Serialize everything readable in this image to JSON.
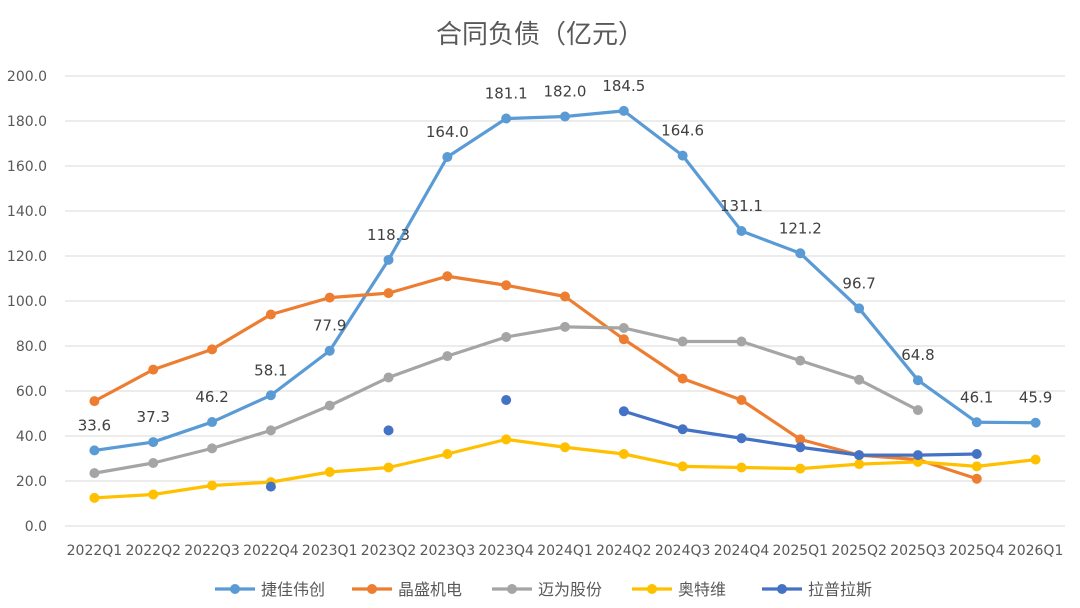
{
  "chart_data": {
    "type": "line",
    "title": "合同负债（亿元）",
    "xlabel": "",
    "ylabel": "",
    "ylim": [
      0,
      200
    ],
    "y_ticks": [
      "0.0",
      "20.0",
      "40.0",
      "60.0",
      "80.0",
      "100.0",
      "120.0",
      "140.0",
      "160.0",
      "180.0",
      "200.0"
    ],
    "grid": "horizontal",
    "legend_position": "bottom",
    "categories": [
      "2022Q1",
      "2022Q2",
      "2022Q3",
      "2022Q4",
      "2023Q1",
      "2023Q2",
      "2023Q3",
      "2023Q4",
      "2024Q1",
      "2024Q2",
      "2024Q3",
      "2024Q4",
      "2025Q1",
      "2025Q2",
      "2025Q3",
      "2025Q4",
      "2026Q1"
    ],
    "series": [
      {
        "name": "捷佳伟创",
        "color": "#5B9BD5",
        "values": [
          33.6,
          37.3,
          46.2,
          58.1,
          77.9,
          118.3,
          164.0,
          181.1,
          182.0,
          184.5,
          164.6,
          131.1,
          121.2,
          96.7,
          64.8,
          46.1,
          45.9
        ],
        "labels": [
          "33.6",
          "37.3",
          "46.2",
          "58.1",
          "77.9",
          "118.3",
          "164.0",
          "181.1",
          "182.0",
          "184.5",
          "164.6",
          "131.1",
          "121.2",
          "96.7",
          "64.8",
          "46.1",
          "45.9"
        ]
      },
      {
        "name": "晶盛机电",
        "color": "#ED7D31",
        "values": [
          55.5,
          69.5,
          78.5,
          94.0,
          101.5,
          103.5,
          111.0,
          107.0,
          102.0,
          83.0,
          65.5,
          56.0,
          38.5,
          31.5,
          29.5,
          21.0,
          null
        ]
      },
      {
        "name": "迈为股份",
        "color": "#A5A5A5",
        "values": [
          23.5,
          28.0,
          34.5,
          42.5,
          53.5,
          66.0,
          75.5,
          84.0,
          88.5,
          88.0,
          82.0,
          82.0,
          73.5,
          65.0,
          51.5,
          null,
          null
        ]
      },
      {
        "name": "奥特维",
        "color": "#FFC000",
        "values": [
          12.5,
          14.0,
          18.0,
          19.5,
          24.0,
          26.0,
          32.0,
          38.5,
          35.0,
          32.0,
          26.5,
          26.0,
          25.5,
          27.5,
          28.5,
          26.5,
          29.5
        ]
      },
      {
        "name": "拉普拉斯",
        "color": "#4472C4",
        "values": [
          null,
          null,
          null,
          17.5,
          null,
          42.5,
          null,
          56.0,
          null,
          51.0,
          43.0,
          39.0,
          35.0,
          31.5,
          31.5,
          32.0,
          null
        ]
      }
    ]
  }
}
